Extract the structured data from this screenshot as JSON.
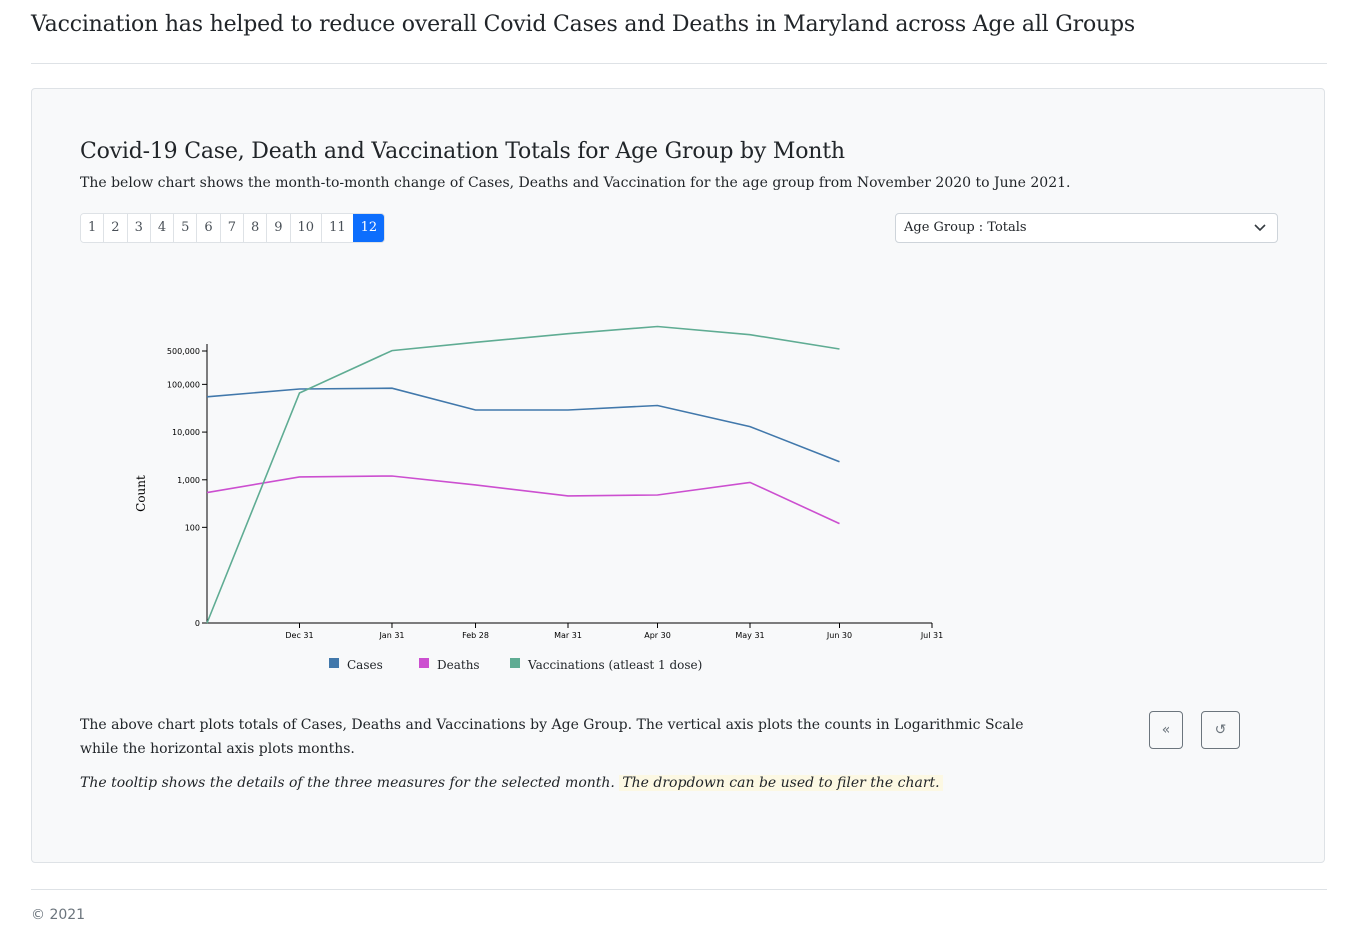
{
  "page": {
    "title": "Vaccination has helped to reduce overall Covid Cases and Deaths in Maryland across Age all Groups",
    "footer": "© 2021"
  },
  "card": {
    "title": "Covid-19 Case, Death and Vaccination Totals for Age Group by Month",
    "description": "The below chart shows the month-to-month change of Cases, Deaths and Vaccination for the age group from November 2020 to June 2021.",
    "pages": [
      "1",
      "2",
      "3",
      "4",
      "5",
      "6",
      "7",
      "8",
      "9",
      "10",
      "11",
      "12"
    ],
    "active_page": "12",
    "dropdown": {
      "selected": "Age Group : Totals"
    },
    "note1": "The above chart plots totals of Cases, Deaths and Vaccinations by Age Group. The vertical axis plots the counts in Logarithmic Scale while the horizontal axis plots months.",
    "note2_a": "The tooltip shows the details of the three measures for the selected month.",
    "note2_b": "The dropdown can be used to filer the chart.",
    "prev_label": "«",
    "reset_label": "↺"
  },
  "chart_data": {
    "type": "line",
    "title": "",
    "xlabel": "",
    "ylabel": "Count",
    "y_scale": "symlog",
    "y_ticks": [
      0,
      100,
      1000,
      10000,
      100000,
      500000
    ],
    "y_tick_labels": [
      "0",
      "100",
      "1,000",
      "10,000",
      "100,000",
      "500,000"
    ],
    "x_ticks": [
      "Dec 31",
      "Jan 31",
      "Feb 28",
      "Mar 31",
      "Apr 30",
      "May 31",
      "Jun 30",
      "Jul 31"
    ],
    "x": [
      "2020-11-30",
      "2020-12-31",
      "2021-01-31",
      "2021-02-28",
      "2021-03-31",
      "2021-04-30",
      "2021-05-31",
      "2021-06-30"
    ],
    "series": [
      {
        "name": "Cases",
        "color": "#4178ab",
        "values": [
          55000,
          80000,
          83000,
          29000,
          29000,
          36000,
          13000,
          2400
        ]
      },
      {
        "name": "Deaths",
        "color": "#cc4fd0",
        "values": [
          540,
          1150,
          1200,
          780,
          460,
          480,
          880,
          120
        ]
      },
      {
        "name": "Vaccinations (atleast 1 dose)",
        "color": "#5fac93",
        "values": [
          0,
          66000,
          510000,
          760000,
          1150000,
          1630000,
          1100000,
          550000
        ]
      }
    ],
    "legend_position": "bottom",
    "grid": false
  }
}
